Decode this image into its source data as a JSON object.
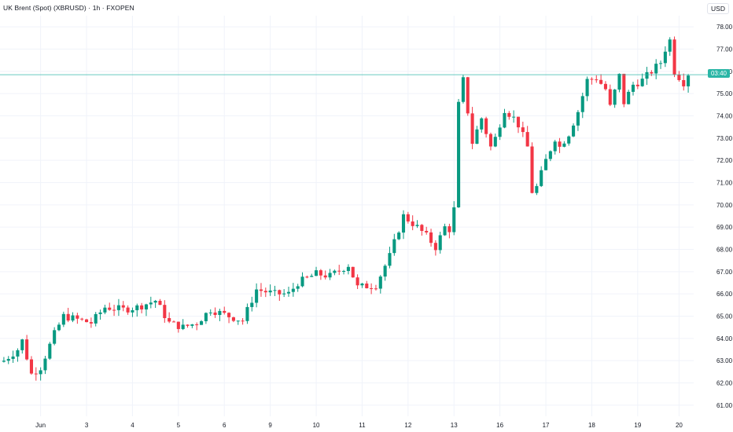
{
  "header": {
    "title": "UK Brent (Spot) (XBRUSD) · 1h · FXOPEN",
    "currency": "USD"
  },
  "price_marker": {
    "label": "03:40",
    "value": 75.85,
    "color": "#2ab6a6"
  },
  "colors": {
    "up": "#089981",
    "down": "#f23645",
    "grid": "#f0f3fa",
    "axis_text": "#131722"
  },
  "chart_data": {
    "type": "candlestick",
    "title": "UK Brent (Spot) (XBRUSD) · 1h · FXOPEN",
    "ylim": [
      60.5,
      78.5
    ],
    "y_ticks": [
      61.0,
      62.0,
      63.0,
      64.0,
      65.0,
      66.0,
      67.0,
      68.0,
      69.0,
      70.0,
      71.0,
      72.0,
      73.0,
      74.0,
      75.0,
      76.0,
      77.0,
      78.0
    ],
    "x_ticks": [
      {
        "label": "Jun",
        "index": 8
      },
      {
        "label": "3",
        "index": 18
      },
      {
        "label": "4",
        "index": 28
      },
      {
        "label": "5",
        "index": 38
      },
      {
        "label": "6",
        "index": 48
      },
      {
        "label": "9",
        "index": 58
      },
      {
        "label": "10",
        "index": 68
      },
      {
        "label": "11",
        "index": 78
      },
      {
        "label": "12",
        "index": 88
      },
      {
        "label": "13",
        "index": 98
      },
      {
        "label": "16",
        "index": 108
      },
      {
        "label": "17",
        "index": 118
      },
      {
        "label": "18",
        "index": 128
      },
      {
        "label": "19",
        "index": 138
      },
      {
        "label": "20",
        "index": 147
      }
    ],
    "key_points": [
      [
        0,
        63.0
      ],
      [
        3,
        63.5
      ],
      [
        4,
        63.9
      ],
      [
        6,
        62.4
      ],
      [
        8,
        62.7
      ],
      [
        11,
        64.2
      ],
      [
        13,
        65.0
      ],
      [
        17,
        64.8
      ],
      [
        19,
        64.7
      ],
      [
        22,
        65.4
      ],
      [
        26,
        65.3
      ],
      [
        29,
        65.4
      ],
      [
        33,
        65.7
      ],
      [
        36,
        64.7
      ],
      [
        39,
        64.5
      ],
      [
        42,
        64.7
      ],
      [
        45,
        65.3
      ],
      [
        49,
        65.0
      ],
      [
        52,
        64.8
      ],
      [
        55,
        66.2
      ],
      [
        59,
        66.0
      ],
      [
        62,
        66.0
      ],
      [
        64,
        66.5
      ],
      [
        68,
        66.9
      ],
      [
        71,
        66.8
      ],
      [
        75,
        67.3
      ],
      [
        77,
        66.3
      ],
      [
        81,
        66.4
      ],
      [
        84,
        67.7
      ],
      [
        87,
        69.5
      ],
      [
        90,
        69.0
      ],
      [
        92,
        68.6
      ],
      [
        94,
        68.1
      ],
      [
        96,
        69.0
      ],
      [
        97,
        68.9
      ],
      [
        98,
        69.8
      ],
      [
        99,
        74.5
      ],
      [
        100,
        75.6
      ],
      [
        101,
        74.2
      ],
      [
        102,
        72.8
      ],
      [
        104,
        73.9
      ],
      [
        106,
        72.6
      ],
      [
        107,
        73.0
      ],
      [
        109,
        74.3
      ],
      [
        111,
        73.9
      ],
      [
        112,
        73.6
      ],
      [
        114,
        72.6
      ],
      [
        115,
        70.6
      ],
      [
        116,
        70.8
      ],
      [
        118,
        72.0
      ],
      [
        120,
        73.0
      ],
      [
        121,
        72.6
      ],
      [
        123,
        73.2
      ],
      [
        125,
        74.2
      ],
      [
        127,
        75.6
      ],
      [
        129,
        75.7
      ],
      [
        131,
        75.2
      ],
      [
        132,
        74.4
      ],
      [
        134,
        75.8
      ],
      [
        135,
        74.6
      ],
      [
        137,
        75.4
      ],
      [
        139,
        75.6
      ],
      [
        141,
        76.0
      ],
      [
        143,
        76.4
      ],
      [
        144,
        77.0
      ],
      [
        145,
        77.4
      ],
      [
        146,
        76.0
      ],
      [
        148,
        75.5
      ],
      [
        149,
        75.9
      ]
    ],
    "candle_count": 150,
    "x_range": [
      0,
      149
    ]
  }
}
